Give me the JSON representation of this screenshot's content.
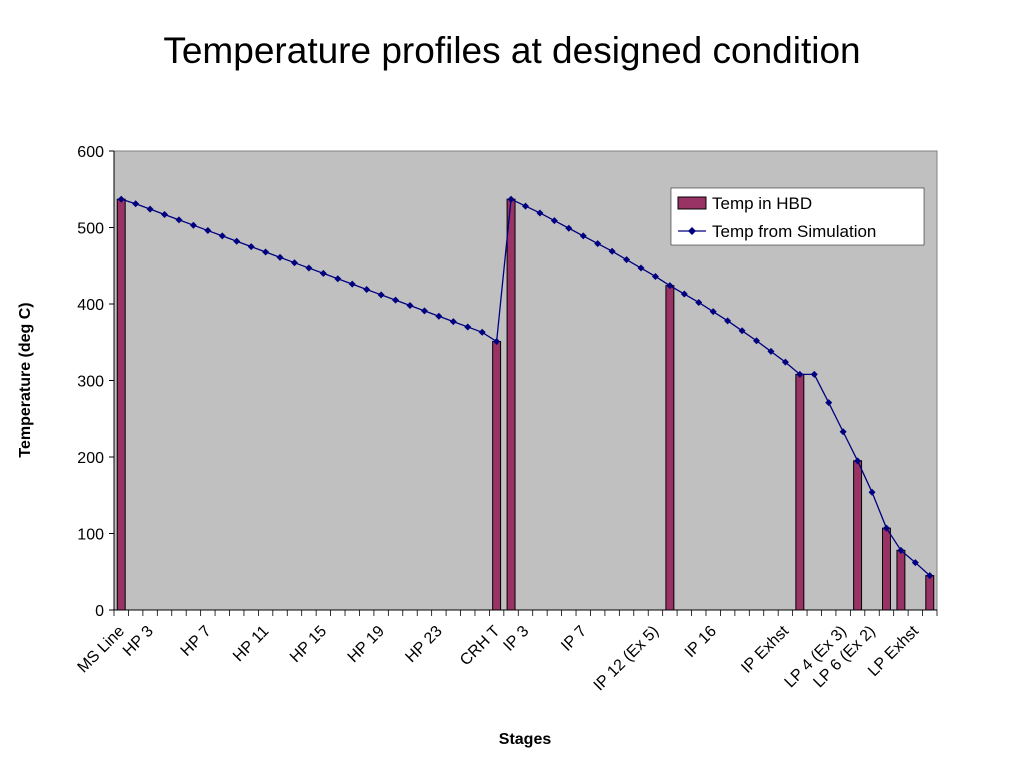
{
  "chart_data": {
    "type": "bar",
    "title": "Temperature profiles at designed condition",
    "xlabel": "Stages",
    "ylabel": "Temperature (deg C)",
    "ylim": [
      0,
      600
    ],
    "yticks": [
      0,
      100,
      200,
      300,
      400,
      500,
      600
    ],
    "grid": false,
    "legend_position": "top-right",
    "colors": {
      "plot_background": "#C0C0C0",
      "bar_fill": "#993366",
      "line": "#000080"
    },
    "x_tick_labels": [
      {
        "index": 0,
        "label": "MS Line"
      },
      {
        "index": 2,
        "label": "HP 3"
      },
      {
        "index": 6,
        "label": "HP 7"
      },
      {
        "index": 10,
        "label": "HP 11"
      },
      {
        "index": 14,
        "label": "HP 15"
      },
      {
        "index": 18,
        "label": "HP 19"
      },
      {
        "index": 22,
        "label": "HP 23"
      },
      {
        "index": 26,
        "label": "CRH T"
      },
      {
        "index": 28,
        "label": "IP 3"
      },
      {
        "index": 32,
        "label": "IP 7"
      },
      {
        "index": 37,
        "label": "IP 12 (Ex 5)"
      },
      {
        "index": 41,
        "label": "IP 16"
      },
      {
        "index": 46,
        "label": "IP Exhst"
      },
      {
        "index": 50,
        "label": "LP 4 (Ex 3)"
      },
      {
        "index": 52,
        "label": "LP 6 (Ex 2)"
      },
      {
        "index": 55,
        "label": "LP Exhst"
      }
    ],
    "series": [
      {
        "name": "Temp in HBD",
        "kind": "bar",
        "points": [
          {
            "index": 0,
            "value": 537
          },
          {
            "index": 26,
            "value": 351
          },
          {
            "index": 27,
            "value": 537
          },
          {
            "index": 38,
            "value": 424
          },
          {
            "index": 47,
            "value": 308
          },
          {
            "index": 51,
            "value": 195
          },
          {
            "index": 53,
            "value": 107
          },
          {
            "index": 54,
            "value": 78
          },
          {
            "index": 56,
            "value": 45
          }
        ]
      },
      {
        "name": "Temp from Simulation",
        "kind": "line",
        "values": [
          537,
          531,
          524,
          517,
          510,
          503,
          496,
          489,
          482,
          475,
          468,
          461,
          454,
          447,
          440,
          433,
          426,
          419,
          412,
          405,
          398,
          391,
          384,
          377,
          370,
          363,
          351,
          537,
          528,
          519,
          509,
          499,
          489,
          479,
          469,
          458,
          447,
          436,
          424,
          413,
          402,
          390,
          378,
          365,
          352,
          338,
          324,
          308,
          308,
          271,
          233,
          195,
          154,
          107,
          78,
          62,
          45
        ]
      }
    ]
  }
}
